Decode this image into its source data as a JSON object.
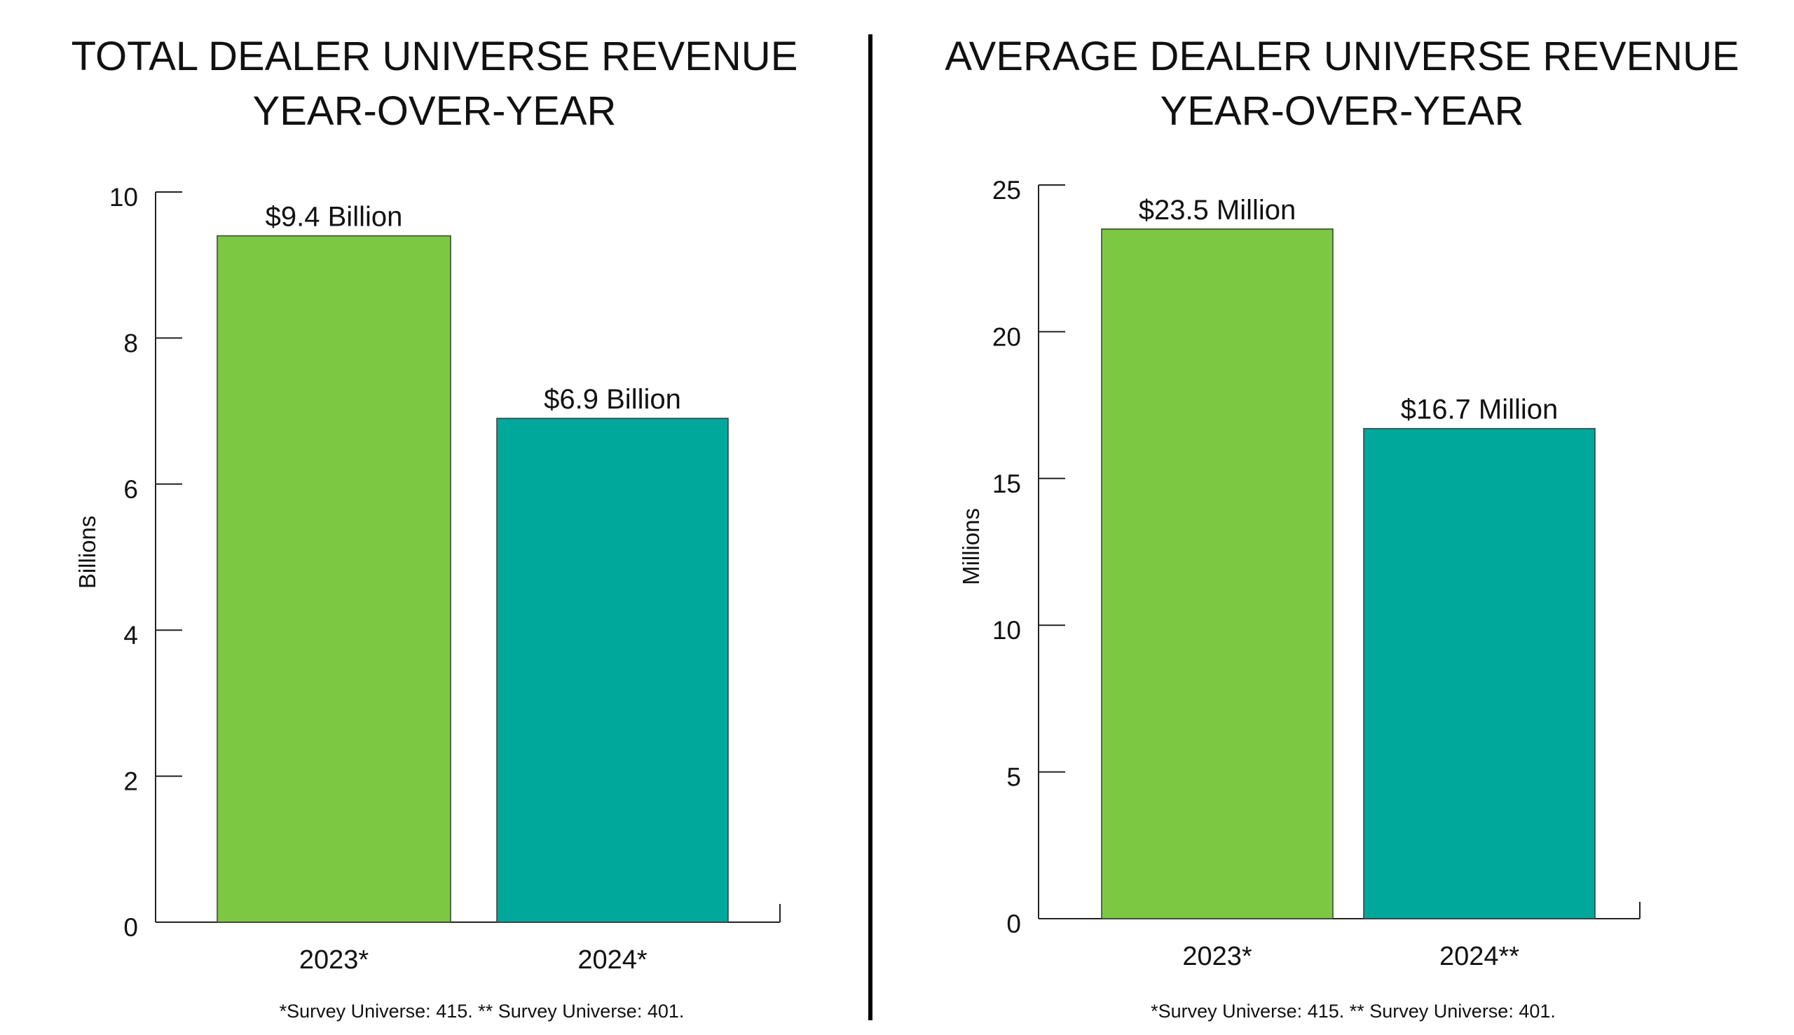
{
  "chart_data": [
    {
      "type": "bar",
      "title": [
        "TOTAL DEALER UNIVERSE REVENUE",
        "YEAR-OVER-YEAR"
      ],
      "ylabel": "Billions",
      "xlabel": "",
      "ylim": [
        0,
        10
      ],
      "yticks": [
        0,
        2,
        4,
        6,
        8,
        10
      ],
      "categories": [
        "2023*",
        "2024*"
      ],
      "values": [
        9.4,
        6.9
      ],
      "data_labels": [
        "$9.4 Billion",
        "$6.9 Billion"
      ],
      "colors": [
        "#7dc843",
        "#00a89c"
      ],
      "footnote": "*Survey Universe: 415. ** Survey Universe: 401.",
      "grid": false
    },
    {
      "type": "bar",
      "title": [
        "AVERAGE DEALER UNIVERSE REVENUE",
        "YEAR-OVER-YEAR"
      ],
      "ylabel": "Millions",
      "xlabel": "",
      "ylim": [
        0,
        25
      ],
      "yticks": [
        0,
        5,
        10,
        15,
        20,
        25
      ],
      "categories": [
        "2023*",
        "2024**"
      ],
      "values": [
        23.5,
        16.7
      ],
      "data_labels": [
        "$23.5 Million",
        "$16.7 Million"
      ],
      "colors": [
        "#7dc843",
        "#00a89c"
      ],
      "footnote": "*Survey Universe: 415. ** Survey Universe: 401.",
      "grid": false
    }
  ]
}
